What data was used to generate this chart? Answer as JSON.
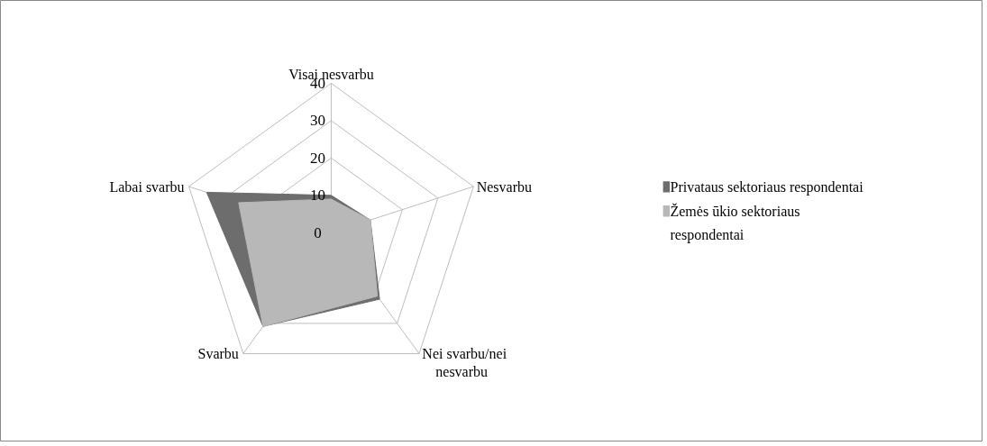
{
  "chart_data": {
    "type": "radar",
    "categories": [
      "Visai nesvarbu",
      "Nesvarbu",
      "Nei svarbu/nei nesvarbu",
      "Svarbu",
      "Labai svarbu"
    ],
    "series": [
      {
        "name": "Privataus sektoriaus respondentai",
        "color": "#6d6d6d",
        "values": [
          10,
          11,
          22,
          31,
          35
        ]
      },
      {
        "name": "Žemės ūkio sektoriaus respondentai",
        "color": "#b8b8b8",
        "values": [
          9,
          11,
          21,
          31,
          26
        ]
      }
    ],
    "ylim": [
      0,
      40
    ],
    "yticks": [
      0,
      10,
      20,
      30,
      40
    ],
    "grid": true,
    "legend": "right"
  }
}
